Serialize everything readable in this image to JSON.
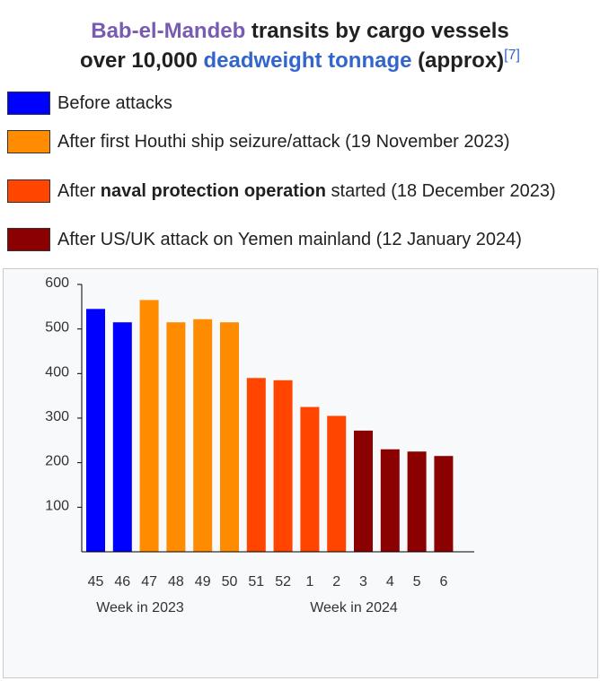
{
  "title": {
    "part1": "Bab-el-Mandeb",
    "part2": " transits by cargo vessels",
    "part3": "over 10,000 ",
    "part4": "deadweight tonnage",
    "part5": " (approx)",
    "ref": "[7]"
  },
  "legend": [
    {
      "color": "#0000ff",
      "pre": "Before attacks",
      "bold": "",
      "post": ""
    },
    {
      "color": "#ff8c00",
      "pre": "After first Houthi ship seizure/attack (19 November 2023)",
      "bold": "",
      "post": ""
    },
    {
      "color": "#ff4500",
      "pre": "After ",
      "bold": "naval protection operation",
      "post": " started (18 December 2023)"
    },
    {
      "color": "#8b0000",
      "pre": "After US/UK attack on Yemen mainland (12 January 2024)",
      "bold": "",
      "post": ""
    }
  ],
  "chart_data": {
    "type": "bar",
    "categories": [
      "45",
      "46",
      "47",
      "48",
      "49",
      "50",
      "51",
      "52",
      "1",
      "2",
      "3",
      "4",
      "5",
      "6"
    ],
    "values": [
      545,
      515,
      565,
      515,
      522,
      515,
      390,
      385,
      325,
      305,
      272,
      230,
      225,
      215
    ],
    "colors": [
      "#0000ff",
      "#0000ff",
      "#ff8c00",
      "#ff8c00",
      "#ff8c00",
      "#ff8c00",
      "#ff4500",
      "#ff4500",
      "#ff4500",
      "#ff4500",
      "#8b0000",
      "#8b0000",
      "#8b0000",
      "#8b0000"
    ],
    "yticks": [
      100,
      200,
      300,
      400,
      500,
      600
    ],
    "ylim": [
      0,
      600
    ],
    "xgroup_labels": [
      "Week in 2023",
      "Week in 2024"
    ],
    "grid": false
  }
}
